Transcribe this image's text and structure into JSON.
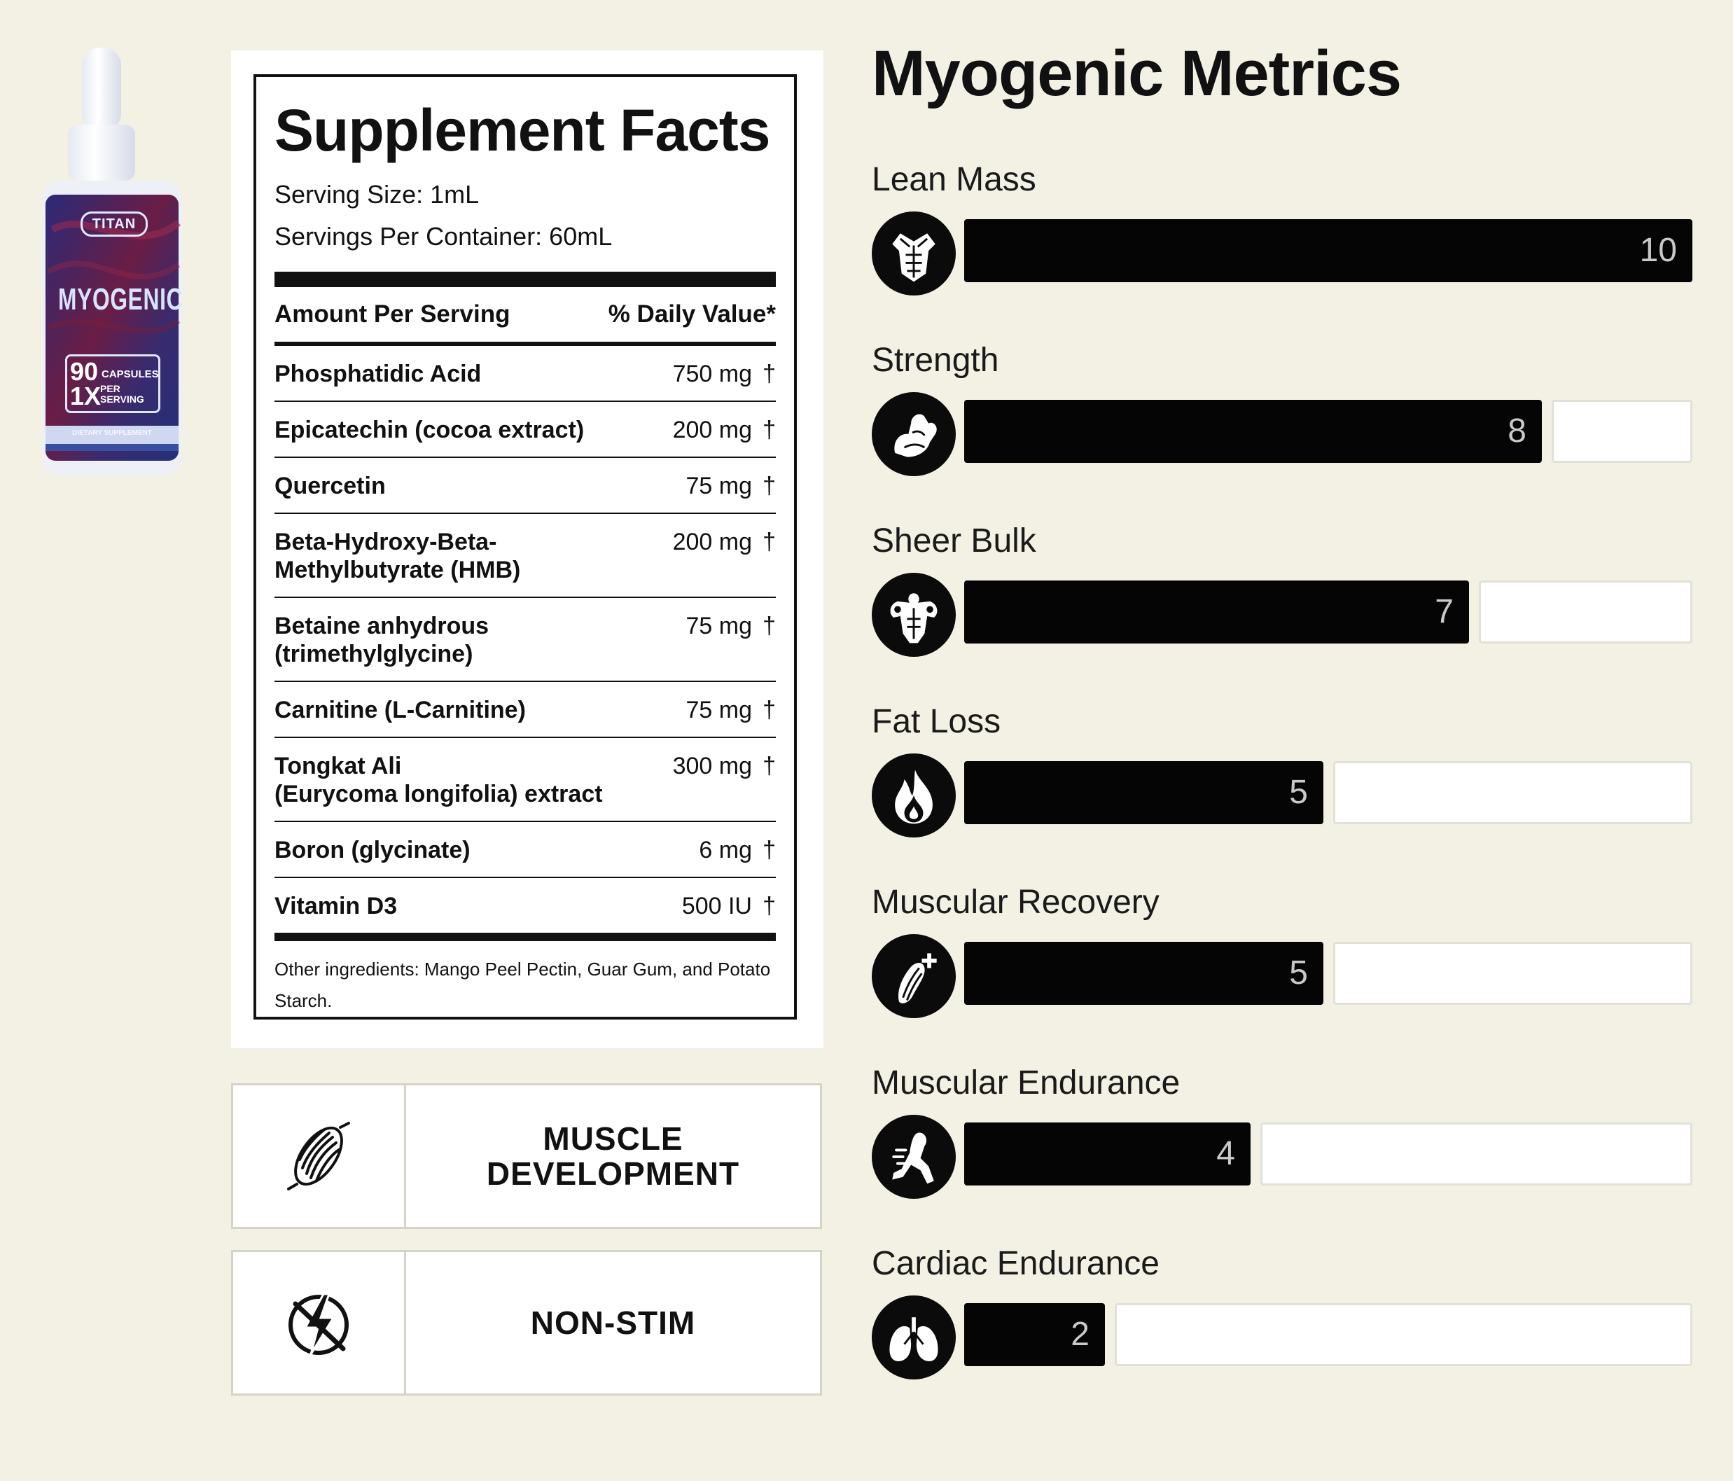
{
  "product": {
    "brand": "TITAN",
    "name": "MYOGENIC",
    "capsule_count": "90",
    "capsule_label": "CAPSULES",
    "dose": "1X",
    "dose_label": "PER SERVING",
    "category": "DIETARY SUPPLEMENT",
    "colors": {
      "label": "#3a2a6e",
      "accent": "#7a1e3a",
      "cap": "#f4f6fa"
    }
  },
  "facts": {
    "title": "Supplement Facts",
    "serving_size": "Serving Size: 1mL",
    "servings_per_container": "Servings Per Container: 60mL",
    "amount_header": "Amount Per Serving",
    "dv_header": "% Daily Value*",
    "ingredients": [
      {
        "name": "Phosphatidic Acid",
        "amount": "750 mg",
        "dv": "†"
      },
      {
        "name": "Epicatechin (cocoa extract)",
        "amount": "200 mg",
        "dv": "†"
      },
      {
        "name": "Quercetin",
        "amount": "75 mg",
        "dv": "†"
      },
      {
        "name": "Beta-Hydroxy-Beta-\nMethylbutyrate (HMB)",
        "amount": "200 mg",
        "dv": "†"
      },
      {
        "name": "Betaine anhydrous\n(trimethylglycine)",
        "amount": "75 mg",
        "dv": "†"
      },
      {
        "name": "Carnitine (L-Carnitine)",
        "amount": "75 mg",
        "dv": "†"
      },
      {
        "name": "Tongkat Ali\n(Eurycoma longifolia) extract",
        "amount": "300 mg",
        "dv": "†"
      },
      {
        "name": "Boron (glycinate)",
        "amount": "6 mg",
        "dv": "†"
      },
      {
        "name": "Vitamin D3",
        "amount": "500 IU",
        "dv": "†"
      }
    ],
    "other_ingredients": "Other ingredients: Mango Peel Pectin, Guar Gum, and Potato Starch."
  },
  "features": [
    {
      "label": "MUSCLE\nDEVELOPMENT",
      "icon": "muscle-fiber-icon"
    },
    {
      "label": "NON-STIM",
      "icon": "no-stimulant-icon"
    }
  ],
  "metrics": {
    "title": "Myogenic Metrics",
    "max": 10,
    "items": [
      {
        "label": "Lean Mass",
        "value": 10,
        "icon": "torso-icon"
      },
      {
        "label": "Strength",
        "value": 8,
        "icon": "flexed-arm-icon"
      },
      {
        "label": "Sheer Bulk",
        "value": 7,
        "icon": "bodybuilder-icon"
      },
      {
        "label": "Fat Loss",
        "value": 5,
        "icon": "flame-icon"
      },
      {
        "label": "Muscular Recovery",
        "value": 5,
        "icon": "muscle-recovery-icon"
      },
      {
        "label": "Muscular Endurance",
        "value": 4,
        "icon": "runner-leg-icon"
      },
      {
        "label": "Cardiac Endurance",
        "value": 2,
        "icon": "lungs-icon"
      }
    ]
  }
}
